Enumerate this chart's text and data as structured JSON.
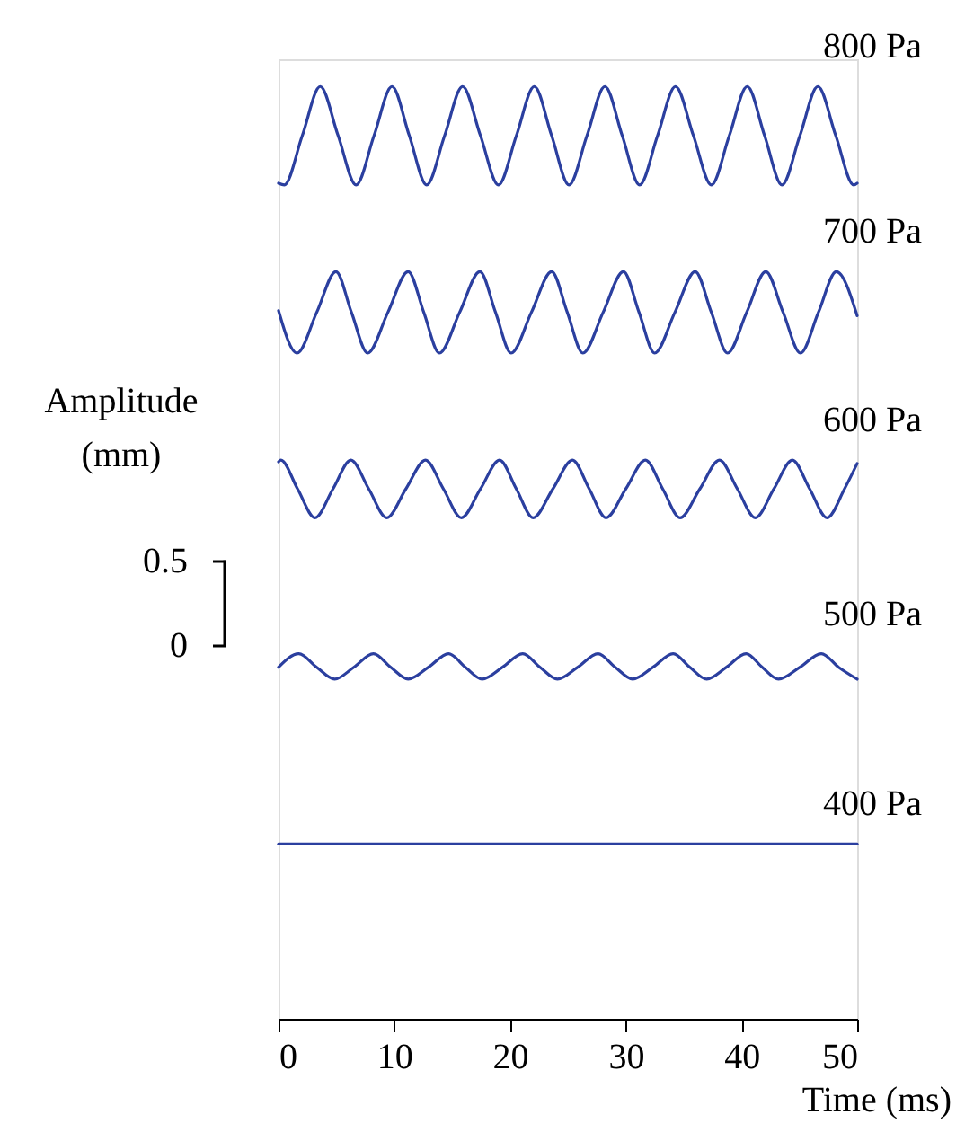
{
  "chart_data": {
    "type": "line",
    "xlabel": "Time (ms)",
    "ylabel": "Amplitude\n(mm)",
    "xlim": [
      0,
      50
    ],
    "xticks": [
      0,
      10,
      20,
      30,
      40,
      50
    ],
    "ylim": [
      -2.2,
      3.45
    ],
    "yticks": [
      0,
      0.5
    ],
    "series": [
      {
        "name": "800 Pa",
        "color": "#2b3f9f",
        "x": [
          0,
          0.5,
          2.05,
          3.6,
          5.15,
          6.7,
          8.25,
          9.8,
          11.3,
          12.8,
          14.35,
          15.9,
          17.45,
          19.0,
          20.55,
          22.1,
          23.6,
          25.1,
          26.65,
          28.2,
          29.7,
          31.2,
          32.75,
          34.3,
          35.85,
          37.4,
          38.95,
          40.5,
          42.0,
          43.5,
          45.05,
          46.6,
          48.15,
          49.7,
          50
        ],
        "values": [
          2.72,
          2.71,
          3.0,
          3.29,
          3.0,
          2.71,
          3.0,
          3.29,
          3.0,
          2.71,
          3.0,
          3.29,
          3.0,
          2.71,
          3.0,
          3.29,
          3.0,
          2.71,
          3.0,
          3.29,
          3.0,
          2.71,
          3.0,
          3.29,
          3.0,
          2.71,
          3.0,
          3.29,
          3.0,
          2.71,
          3.0,
          3.29,
          3.0,
          2.71,
          2.72
        ]
      },
      {
        "name": "700 Pa",
        "color": "#2b3f9f",
        "x": [
          0,
          1.6,
          3.3,
          4.96,
          6.3,
          7.7,
          9.45,
          11.2,
          12.55,
          13.9,
          15.65,
          17.4,
          18.75,
          20.1,
          21.85,
          23.6,
          24.95,
          26.3,
          28.05,
          29.8,
          31.15,
          32.5,
          34.25,
          36.0,
          37.4,
          38.8,
          40.45,
          42.1,
          43.6,
          45.1,
          46.65,
          48.2,
          50
        ],
        "values": [
          1.97,
          1.72,
          1.96,
          2.2,
          1.96,
          1.72,
          1.96,
          2.2,
          1.96,
          1.72,
          1.96,
          2.2,
          1.96,
          1.72,
          1.96,
          2.2,
          1.96,
          1.72,
          1.96,
          2.2,
          1.96,
          1.72,
          1.96,
          2.2,
          1.96,
          1.72,
          1.96,
          2.2,
          1.96,
          1.72,
          1.96,
          2.2,
          1.94
        ]
      },
      {
        "name": "600 Pa",
        "color": "#2b3f9f",
        "x": [
          0,
          0.2,
          1.65,
          3.15,
          4.7,
          6.25,
          7.8,
          9.35,
          11.0,
          12.7,
          14.25,
          15.8,
          17.45,
          19.1,
          20.55,
          22.0,
          23.7,
          25.4,
          26.85,
          28.3,
          30.0,
          31.7,
          33.2,
          34.7,
          36.4,
          38.1,
          39.65,
          41.2,
          42.8,
          44.4,
          45.9,
          47.4,
          48.9,
          50
        ],
        "values": [
          1.08,
          1.09,
          0.92,
          0.75,
          0.92,
          1.09,
          0.92,
          0.75,
          0.92,
          1.09,
          0.92,
          0.75,
          0.92,
          1.09,
          0.92,
          0.75,
          0.92,
          1.09,
          0.92,
          0.75,
          0.92,
          1.09,
          0.92,
          0.75,
          0.92,
          1.09,
          0.92,
          0.75,
          0.92,
          1.09,
          0.92,
          0.75,
          0.92,
          1.07
        ]
      },
      {
        "name": "500 Pa",
        "color": "#2b3f9f",
        "x": [
          0,
          1.75,
          3.3,
          4.85,
          6.5,
          8.2,
          9.7,
          11.2,
          12.95,
          14.7,
          16.15,
          17.6,
          19.35,
          21.1,
          22.6,
          24.1,
          25.85,
          27.6,
          29.1,
          30.6,
          32.35,
          34.1,
          35.55,
          37.0,
          38.7,
          40.4,
          41.8,
          43.2,
          45.05,
          46.9,
          48.4,
          50
        ],
        "values": [
          -0.13,
          -0.05,
          -0.13,
          -0.2,
          -0.13,
          -0.05,
          -0.13,
          -0.2,
          -0.13,
          -0.05,
          -0.13,
          -0.2,
          -0.13,
          -0.05,
          -0.13,
          -0.2,
          -0.13,
          -0.05,
          -0.13,
          -0.2,
          -0.13,
          -0.05,
          -0.13,
          -0.2,
          -0.13,
          -0.05,
          -0.13,
          -0.2,
          -0.13,
          -0.05,
          -0.13,
          -0.2
        ]
      },
      {
        "name": "400 Pa",
        "color": "#2b3f9f",
        "x": [
          0,
          10,
          20,
          30,
          40,
          50
        ],
        "values": [
          -1.17,
          -1.17,
          -1.17,
          -1.17,
          -1.17,
          -1.17
        ]
      }
    ]
  }
}
